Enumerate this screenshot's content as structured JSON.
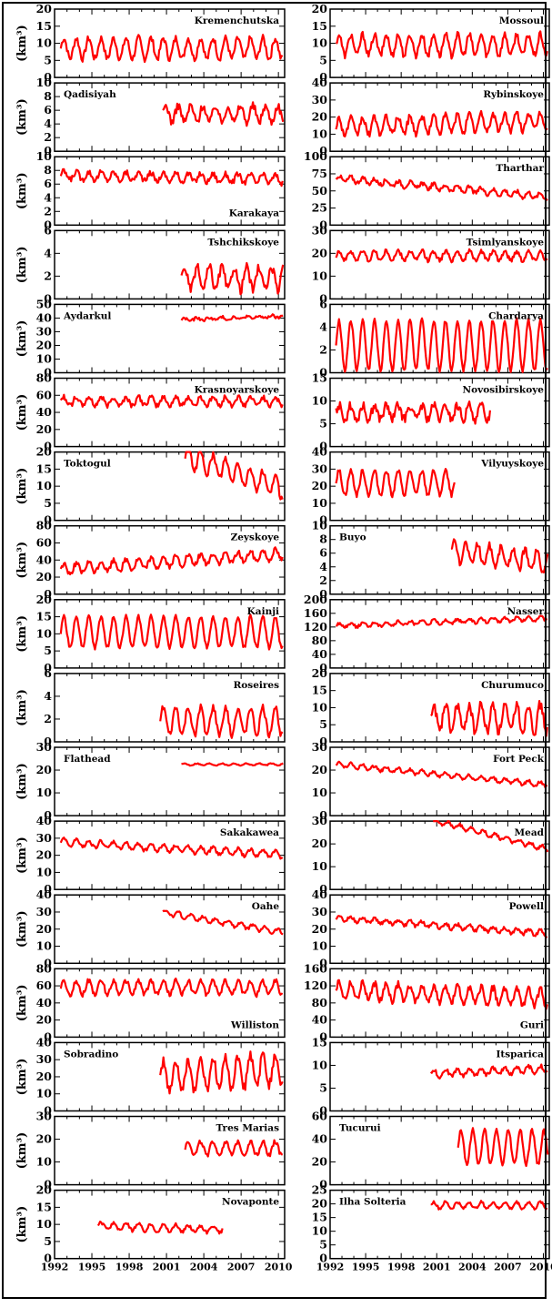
{
  "chart_data": {
    "type": "line",
    "line_color": "#ff0000",
    "x_ticks": [
      "1992",
      "1995",
      "1998",
      "2001",
      "2004",
      "2007",
      "2010"
    ],
    "xlim": [
      1992,
      2010.5
    ],
    "ylabel": "(km³)",
    "grid": false,
    "panels": [
      {
        "name": "Kremenchutska",
        "col": 0,
        "ylim": [
          0,
          20
        ],
        "yticks": [
          "0",
          "5",
          "10",
          "15",
          "20"
        ],
        "label_pos": "top-right",
        "series": {
          "start": 1992.5,
          "end": 2010.4,
          "mean": 8.5,
          "amp": 3,
          "noise": 1,
          "period": 1,
          "trend": 0,
          "label_note": ""
        }
      },
      {
        "name": "Mossoul",
        "col": 1,
        "ylim": [
          0,
          20
        ],
        "yticks": [
          "0",
          "5",
          "10",
          "15",
          "20"
        ],
        "label_pos": "top-right",
        "series": {
          "start": 1992.5,
          "end": 2010.4,
          "mean": 9.5,
          "amp": 3,
          "noise": 1,
          "period": 1,
          "trend": 0
        }
      },
      {
        "name": "Qadisiyah",
        "col": 0,
        "ylim": [
          0,
          10
        ],
        "yticks": [
          "0",
          "2",
          "4",
          "6",
          "8",
          "10"
        ],
        "label_pos": "top-left",
        "series": {
          "start": 2000.7,
          "end": 2010.4,
          "mean": 5.5,
          "amp": 1.2,
          "noise": 0.6,
          "period": 1,
          "trend": 0
        }
      },
      {
        "name": "Rybinskoye",
        "col": 1,
        "ylim": [
          0,
          40
        ],
        "yticks": [
          "0",
          "10",
          "20",
          "30",
          "40"
        ],
        "label_pos": "top-right",
        "series": {
          "start": 1992.5,
          "end": 2010.4,
          "mean": 16,
          "amp": 5,
          "noise": 2,
          "period": 1,
          "trend": 0.2
        }
      },
      {
        "name": "Karakaya",
        "col": 0,
        "ylim": [
          0,
          10
        ],
        "yticks": [
          "0",
          "2",
          "4",
          "6",
          "8",
          "10"
        ],
        "label_pos": "bottom-right",
        "series": {
          "start": 1992.5,
          "end": 2010.4,
          "mean": 7,
          "amp": 0.6,
          "noise": 0.4,
          "period": 1,
          "trend": -0.03
        }
      },
      {
        "name": "Tharthar",
        "col": 1,
        "ylim": [
          0,
          100
        ],
        "yticks": [
          "0",
          "25",
          "50",
          "75",
          "100"
        ],
        "label_pos": "top-right",
        "series": {
          "start": 1992.5,
          "end": 2010.4,
          "mean": 55,
          "amp": 4,
          "noise": 3,
          "period": 1,
          "trend": -1.5
        }
      },
      {
        "name": "Tshchikskoye",
        "col": 0,
        "ylim": [
          0,
          6
        ],
        "yticks": [
          "0",
          "2",
          "4",
          "6"
        ],
        "label_pos": "top-right",
        "series": {
          "start": 2002.2,
          "end": 2010.4,
          "mean": 1.8,
          "amp": 1,
          "noise": 0.4,
          "period": 1,
          "trend": 0
        }
      },
      {
        "name": "Tsimlyanskoye",
        "col": 1,
        "ylim": [
          0,
          30
        ],
        "yticks": [
          "0",
          "10",
          "20",
          "30"
        ],
        "label_pos": "top-right",
        "series": {
          "start": 1992.5,
          "end": 2010.4,
          "mean": 19,
          "amp": 2,
          "noise": 1,
          "period": 1,
          "trend": 0
        }
      },
      {
        "name": "Aydarkul",
        "col": 0,
        "ylim": [
          0,
          50
        ],
        "yticks": [
          "0",
          "10",
          "20",
          "30",
          "40",
          "50"
        ],
        "label_pos": "top-left",
        "series": {
          "start": 2002.2,
          "end": 2010.4,
          "mean": 40,
          "amp": 1,
          "noise": 1,
          "period": 1,
          "trend": 0.3
        }
      },
      {
        "name": "Chardarya",
        "col": 1,
        "ylim": [
          0,
          6
        ],
        "yticks": [
          "0",
          "2",
          "4",
          "6"
        ],
        "label_pos": "top-right",
        "series": {
          "start": 1992.5,
          "end": 2010.4,
          "mean": 2.4,
          "amp": 2.2,
          "noise": 0.2,
          "period": 1,
          "trend": 0
        }
      },
      {
        "name": "Krasnoyarskoye",
        "col": 0,
        "ylim": [
          0,
          80
        ],
        "yticks": [
          "0",
          "20",
          "40",
          "60",
          "80"
        ],
        "label_pos": "top-right",
        "series": {
          "start": 1992.5,
          "end": 2010.4,
          "mean": 53,
          "amp": 5,
          "noise": 3,
          "period": 1,
          "trend": 0
        }
      },
      {
        "name": "Novosibirskoye",
        "col": 1,
        "ylim": [
          0,
          15
        ],
        "yticks": [
          "0",
          "5",
          "10",
          "15"
        ],
        "label_pos": "top-right",
        "series": {
          "start": 1992.5,
          "end": 2005.5,
          "mean": 7.5,
          "amp": 1.5,
          "noise": 1,
          "period": 1,
          "trend": 0
        }
      },
      {
        "name": "Toktogul",
        "col": 0,
        "ylim": [
          0,
          20
        ],
        "yticks": [
          "0",
          "5",
          "10",
          "15",
          "20"
        ],
        "label_pos": "top-left",
        "series": {
          "start": 2002.5,
          "end": 2010.4,
          "mean": 14,
          "amp": 3,
          "noise": 1,
          "period": 1,
          "trend": -1.2
        }
      },
      {
        "name": "Vilyuyskoye",
        "col": 1,
        "ylim": [
          0,
          40
        ],
        "yticks": [
          "0",
          "10",
          "20",
          "30",
          "40"
        ],
        "label_pos": "top-right",
        "series": {
          "start": 1992.5,
          "end": 2002.5,
          "mean": 22,
          "amp": 7,
          "noise": 1.5,
          "period": 1,
          "trend": 0
        }
      },
      {
        "name": "Zeyskoye",
        "col": 0,
        "ylim": [
          0,
          80
        ],
        "yticks": [
          "0",
          "20",
          "40",
          "60",
          "80"
        ],
        "label_pos": "top-right",
        "series": {
          "start": 1992.5,
          "end": 2010.4,
          "mean": 38,
          "amp": 6,
          "noise": 3,
          "period": 1,
          "trend": 1
        }
      },
      {
        "name": "Buyo",
        "col": 1,
        "ylim": [
          0,
          10
        ],
        "yticks": [
          "0",
          "2",
          "4",
          "6",
          "8",
          "10"
        ],
        "label_pos": "top-left",
        "series": {
          "start": 2002.2,
          "end": 2010.4,
          "mean": 5.5,
          "amp": 1.5,
          "noise": 0.5,
          "period": 1,
          "trend": -0.2
        }
      },
      {
        "name": "Kainji",
        "col": 0,
        "ylim": [
          0,
          20
        ],
        "yticks": [
          "0",
          "5",
          "10",
          "15",
          "20"
        ],
        "label_pos": "top-right",
        "series": {
          "start": 1992.5,
          "end": 2010.4,
          "mean": 10.5,
          "amp": 4.5,
          "noise": 0.6,
          "period": 1,
          "trend": 0
        }
      },
      {
        "name": "Nasser",
        "col": 1,
        "ylim": [
          0,
          200
        ],
        "yticks": [
          "0",
          "40",
          "80",
          "120",
          "160",
          "200"
        ],
        "label_pos": "top-right",
        "series": {
          "start": 1992.5,
          "end": 2010.4,
          "mean": 135,
          "amp": 6,
          "noise": 4,
          "period": 1,
          "trend": 1.2
        }
      },
      {
        "name": "Roseires",
        "col": 0,
        "ylim": [
          0,
          6
        ],
        "yticks": [
          "0",
          "2",
          "4",
          "6"
        ],
        "label_pos": "top-right",
        "series": {
          "start": 2000.5,
          "end": 2010.4,
          "mean": 1.8,
          "amp": 1.2,
          "noise": 0.3,
          "period": 1,
          "trend": 0
        }
      },
      {
        "name": "Churumuco",
        "col": 1,
        "ylim": [
          0,
          20
        ],
        "yticks": [
          "0",
          "5",
          "10",
          "15",
          "20"
        ],
        "label_pos": "top-right",
        "series": {
          "start": 2000.5,
          "end": 2010.4,
          "mean": 7,
          "amp": 4,
          "noise": 1.5,
          "period": 1,
          "trend": 0
        }
      },
      {
        "name": "Flathead",
        "col": 0,
        "ylim": [
          0,
          30
        ],
        "yticks": [
          "0",
          "10",
          "20",
          "30"
        ],
        "label_pos": "top-left",
        "series": {
          "start": 2002.2,
          "end": 2010.4,
          "mean": 22.5,
          "amp": 0.4,
          "noise": 0.2,
          "period": 1,
          "trend": 0
        }
      },
      {
        "name": "Fort Peck",
        "col": 1,
        "ylim": [
          0,
          30
        ],
        "yticks": [
          "0",
          "10",
          "20",
          "30"
        ],
        "label_pos": "top-right",
        "series": {
          "start": 1992.5,
          "end": 2010.4,
          "mean": 18,
          "amp": 1,
          "noise": 0.6,
          "period": 1,
          "trend": -0.5
        }
      },
      {
        "name": "Sakakawea",
        "col": 0,
        "ylim": [
          0,
          40
        ],
        "yticks": [
          "0",
          "10",
          "20",
          "30",
          "40"
        ],
        "label_pos": "top-right",
        "series": {
          "start": 1992.5,
          "end": 2010.4,
          "mean": 24,
          "amp": 2,
          "noise": 1,
          "period": 1,
          "trend": -0.4
        }
      },
      {
        "name": "Mead",
        "col": 1,
        "ylim": [
          0,
          30
        ],
        "yticks": [
          "0",
          "10",
          "20",
          "30"
        ],
        "label_pos": "top-right",
        "series": {
          "start": 2000.7,
          "end": 2010.4,
          "mean": 24,
          "amp": 1,
          "noise": 0.6,
          "period": 1,
          "trend": -1.3
        }
      },
      {
        "name": "Oahe",
        "col": 0,
        "ylim": [
          0,
          40
        ],
        "yticks": [
          "0",
          "10",
          "20",
          "30",
          "40"
        ],
        "label_pos": "top-right",
        "series": {
          "start": 2000.7,
          "end": 2010.4,
          "mean": 24,
          "amp": 1.5,
          "noise": 0.8,
          "period": 1,
          "trend": -1.2
        }
      },
      {
        "name": "Powell",
        "col": 1,
        "ylim": [
          0,
          40
        ],
        "yticks": [
          "0",
          "10",
          "20",
          "30",
          "40"
        ],
        "label_pos": "top-right",
        "series": {
          "start": 1992.5,
          "end": 2010.4,
          "mean": 22,
          "amp": 1.5,
          "noise": 1,
          "period": 1,
          "trend": -0.5
        }
      },
      {
        "name": "Williston",
        "col": 0,
        "ylim": [
          0,
          80
        ],
        "yticks": [
          "0",
          "20",
          "40",
          "60",
          "80"
        ],
        "label_pos": "bottom-right",
        "series": {
          "start": 1992.5,
          "end": 2010.4,
          "mean": 58,
          "amp": 8,
          "noise": 3,
          "period": 1,
          "trend": 0
        }
      },
      {
        "name": "Guri",
        "col": 1,
        "ylim": [
          0,
          160
        ],
        "yticks": [
          "0",
          "40",
          "80",
          "120",
          "160"
        ],
        "label_pos": "bottom-right",
        "series": {
          "start": 1992.5,
          "end": 2010.4,
          "mean": 100,
          "amp": 20,
          "noise": 8,
          "period": 1,
          "trend": -1
        }
      },
      {
        "name": "Sobradino",
        "col": 0,
        "ylim": [
          0,
          40
        ],
        "yticks": [
          "0",
          "10",
          "20",
          "30",
          "40"
        ],
        "label_pos": "top-left",
        "series": {
          "start": 2000.5,
          "end": 2010.4,
          "mean": 22,
          "amp": 9,
          "noise": 3,
          "period": 1,
          "trend": 0.5
        }
      },
      {
        "name": "Itsparica",
        "col": 1,
        "ylim": [
          0,
          15
        ],
        "yticks": [
          "0",
          "5",
          "10",
          "15"
        ],
        "label_pos": "top-right",
        "series": {
          "start": 2000.5,
          "end": 2010.4,
          "mean": 8.7,
          "amp": 0.8,
          "noise": 0.4,
          "period": 1,
          "trend": 0.1
        }
      },
      {
        "name": "Tres Marias",
        "col": 0,
        "ylim": [
          0,
          30
        ],
        "yticks": [
          "0",
          "10",
          "20",
          "30"
        ],
        "label_pos": "top-right",
        "series": {
          "start": 2002.5,
          "end": 2010.4,
          "mean": 16,
          "amp": 3,
          "noise": 1,
          "period": 1,
          "trend": 0
        }
      },
      {
        "name": "Tucurui",
        "col": 1,
        "ylim": [
          0,
          60
        ],
        "yticks": [
          "0",
          "20",
          "40",
          "60"
        ],
        "label_pos": "top-left",
        "series": {
          "start": 2002.8,
          "end": 2010.4,
          "mean": 33,
          "amp": 15,
          "noise": 2,
          "period": 1,
          "trend": 0
        }
      },
      {
        "name": "Novaponte",
        "col": 0,
        "ylim": [
          0,
          20
        ],
        "yticks": [
          "0",
          "5",
          "10",
          "15",
          "20"
        ],
        "label_pos": "top-right",
        "series": {
          "start": 1995.5,
          "end": 2005.5,
          "mean": 9,
          "amp": 1,
          "noise": 0.5,
          "period": 1,
          "trend": -0.1
        }
      },
      {
        "name": "Ilha Solteria",
        "col": 1,
        "ylim": [
          0,
          25
        ],
        "yticks": [
          "0",
          "5",
          "10",
          "15",
          "20",
          "25"
        ],
        "label_pos": "top-left",
        "series": {
          "start": 2000.5,
          "end": 2010.4,
          "mean": 19.5,
          "amp": 1.2,
          "noise": 0.5,
          "period": 1,
          "trend": 0
        }
      }
    ]
  }
}
